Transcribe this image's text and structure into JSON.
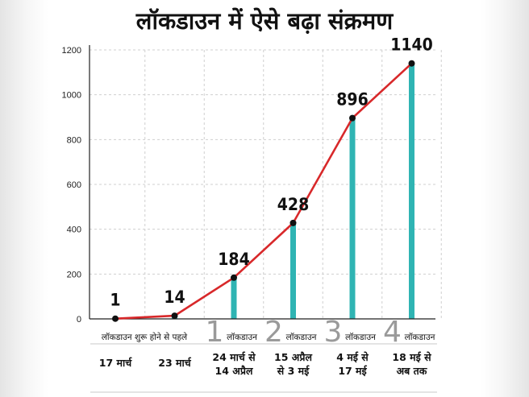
{
  "chart_data": {
    "type": "line",
    "title": "लॉकडाउन में ऐसे बढ़ा संक्रमण",
    "ylim": [
      0,
      1200
    ],
    "y_ticks": [
      0,
      200,
      400,
      600,
      800,
      1000,
      1200
    ],
    "grid": true,
    "points": [
      {
        "value": 1,
        "label": "1",
        "phase_num": "",
        "phase_text": "लॉकडाउन शुरू होने से पहले",
        "date_lines": [
          "17 मार्च"
        ]
      },
      {
        "value": 14,
        "label": "14",
        "phase_num": "",
        "phase_text": "",
        "date_lines": [
          "23 मार्च"
        ]
      },
      {
        "value": 184,
        "label": "184",
        "phase_num": "1",
        "phase_text": "लॉकडाउन",
        "date_lines": [
          "24 मार्च से",
          "14 अप्रैल"
        ]
      },
      {
        "value": 428,
        "label": "428",
        "phase_num": "2",
        "phase_text": "लॉकडाउन",
        "date_lines": [
          "15 अप्रैल",
          "से 3 मई"
        ]
      },
      {
        "value": 896,
        "label": "896",
        "phase_num": "3",
        "phase_text": "लॉकडाउन",
        "date_lines": [
          "4 मई से",
          "17 मई"
        ]
      },
      {
        "value": 1140,
        "label": "1140",
        "phase_num": "4",
        "phase_text": "लॉकडाउन",
        "date_lines": [
          "18 मई से",
          "अब तक"
        ]
      }
    ],
    "colors": {
      "line": "#d8282a",
      "bar": "#2fb4b3",
      "marker": "#111111",
      "grid": "#cfcfcf"
    }
  }
}
